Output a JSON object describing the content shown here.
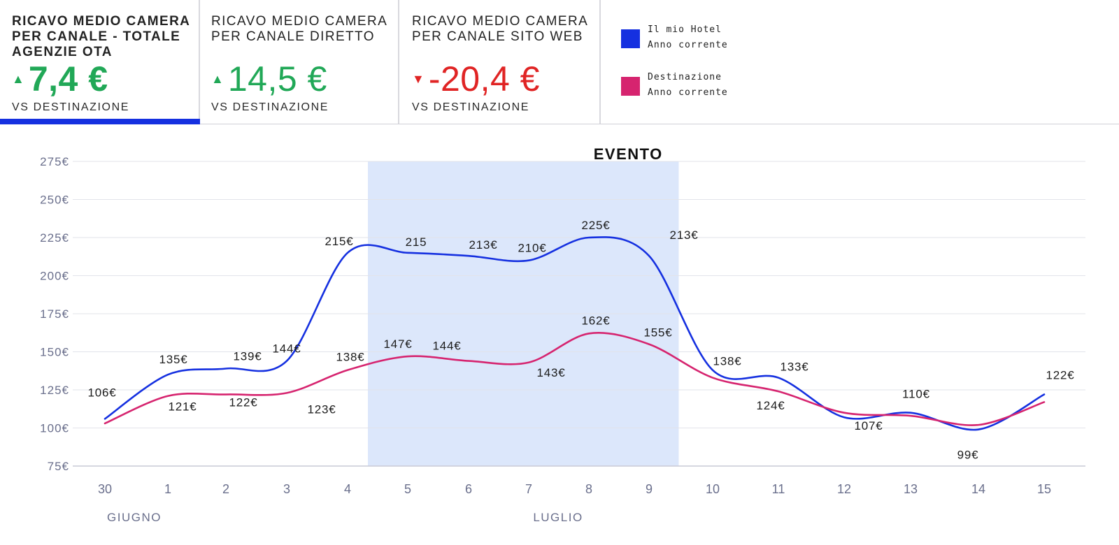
{
  "kpis": [
    {
      "title": "Ricavo medio camera per canale - totale agenzie OTA",
      "value": "7,4 €",
      "trend": "up",
      "subtitle": "VS DESTINAZIONE",
      "active": true
    },
    {
      "title": "Ricavo medio camera per canale diretto",
      "value": "14,5 €",
      "trend": "up",
      "subtitle": "VS DESTINAZIONE",
      "active": false
    },
    {
      "title": "Ricavo medio camera per canale sito web",
      "value": "-20,4 €",
      "trend": "down",
      "subtitle": "VS DESTINAZIONE",
      "active": false
    }
  ],
  "colors": {
    "up": "#21a857",
    "down": "#e02424",
    "hotel": "#1530e0",
    "destination": "#d6246f",
    "event_band": "#dce7fb",
    "axis_text": "#6a6f8c"
  },
  "legend": [
    {
      "name": "Il mio Hotel",
      "period": "Anno corrente",
      "color": "#1530e0"
    },
    {
      "name": "Destinazione",
      "period": "Anno corrente",
      "color": "#d6246f"
    }
  ],
  "chart_data": {
    "type": "line",
    "x": [
      "30",
      "1",
      "2",
      "3",
      "4",
      "5",
      "6",
      "7",
      "8",
      "9",
      "10",
      "11",
      "12",
      "13",
      "14",
      "15"
    ],
    "month_labels": [
      {
        "label": "GIUGNO",
        "at": "30"
      },
      {
        "label": "LUGLIO",
        "at": "7"
      }
    ],
    "y_ticks": [
      "275€",
      "250€",
      "225€",
      "200€",
      "175€",
      "150€",
      "125€",
      "100€",
      "75€"
    ],
    "ylim": [
      75,
      275
    ],
    "grid": true,
    "annotation": {
      "label": "EVENTO",
      "from": "4",
      "to": "9"
    },
    "series": [
      {
        "name": "Il mio Hotel",
        "color": "#1530e0",
        "values": [
          106,
          135,
          139,
          144,
          215,
          215,
          213,
          210,
          225,
          213,
          138,
          133,
          107,
          110,
          99,
          122
        ],
        "labels": [
          "106€",
          "135€",
          "139€",
          "144€",
          "215€",
          "215",
          "213€",
          "210€",
          "225€",
          "213€",
          "138€",
          "133€",
          "107€",
          "110€",
          "99€",
          "122€"
        ]
      },
      {
        "name": "Destinazione",
        "color": "#d6246f",
        "values": [
          103,
          121,
          122,
          123,
          138,
          147,
          144,
          143,
          162,
          155,
          133,
          124,
          110,
          108,
          102,
          117
        ],
        "labels": [
          "",
          "121€",
          "122€",
          "123€",
          "138€",
          "147€",
          "144€",
          "143€",
          "162€",
          "155€",
          "",
          "124€",
          "",
          "",
          "",
          ""
        ]
      }
    ]
  }
}
